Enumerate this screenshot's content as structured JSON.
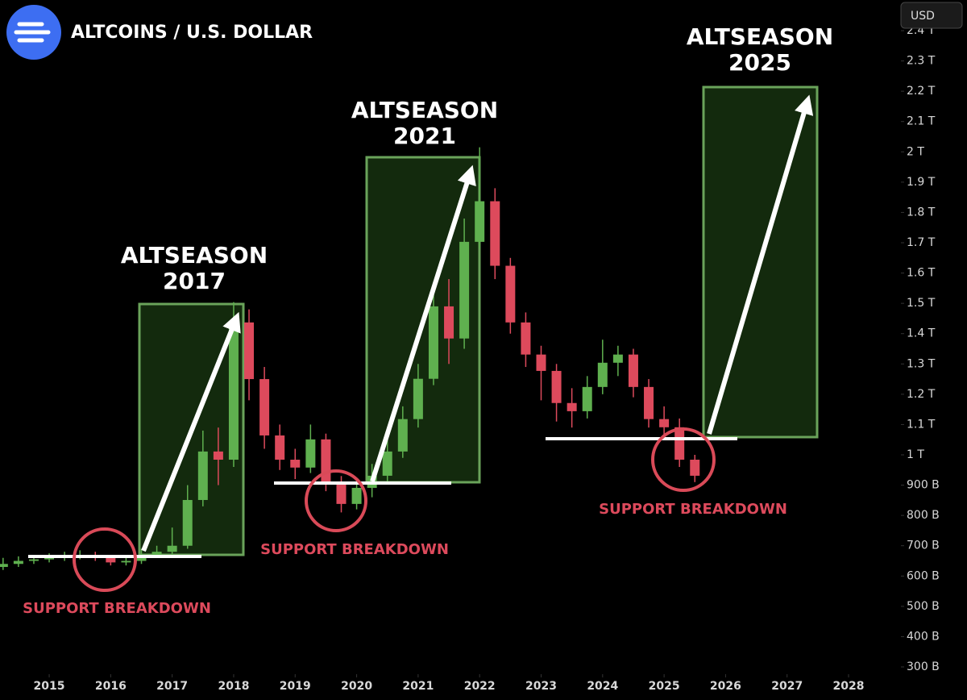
{
  "chart_data": {
    "type": "candlestick",
    "title": "ALTCOINS / U.S. DOLLAR",
    "currency": "USD",
    "up_color": "#5fb04f",
    "down_color": "#dd4a5c",
    "xlim": [
      2014.2,
      2028.55
    ],
    "xticks": [
      2015,
      2016,
      2017,
      2018,
      2019,
      2020,
      2021,
      2022,
      2023,
      2024,
      2025,
      2026,
      2027,
      2028
    ],
    "ylim": [
      300,
      2400
    ],
    "yticks": [
      {
        "value": 300,
        "label": "300 B"
      },
      {
        "value": 400,
        "label": "400 B"
      },
      {
        "value": 500,
        "label": "500 B"
      },
      {
        "value": 600,
        "label": "600 B"
      },
      {
        "value": 700,
        "label": "700 B"
      },
      {
        "value": 800,
        "label": "800 B"
      },
      {
        "value": 900,
        "label": "900 B"
      },
      {
        "value": 1000,
        "label": "1 T"
      },
      {
        "value": 1100,
        "label": "1.1 T"
      },
      {
        "value": 1200,
        "label": "1.2 T"
      },
      {
        "value": 1300,
        "label": "1.3 T"
      },
      {
        "value": 1400,
        "label": "1.4 T"
      },
      {
        "value": 1500,
        "label": "1.5 T"
      },
      {
        "value": 1600,
        "label": "1.6 T"
      },
      {
        "value": 1700,
        "label": "1.7 T"
      },
      {
        "value": 1800,
        "label": "1.8 T"
      },
      {
        "value": 1900,
        "label": "1.9 T"
      },
      {
        "value": 2000,
        "label": "2 T"
      },
      {
        "value": 2100,
        "label": "2.1 T"
      },
      {
        "value": 2200,
        "label": "2.2 T"
      },
      {
        "value": 2300,
        "label": "2.3 T"
      },
      {
        "value": 2400,
        "label": "2.4 T"
      }
    ],
    "x": [
      2014.25,
      2014.5,
      2014.75,
      2015,
      2015.25,
      2015.5,
      2015.75,
      2016,
      2016.25,
      2016.5,
      2016.75,
      2017,
      2017.25,
      2017.5,
      2017.75,
      2018,
      2018.25,
      2018.5,
      2018.75,
      2019,
      2019.25,
      2019.5,
      2019.75,
      2020,
      2020.25,
      2020.5,
      2020.75,
      2021,
      2021.25,
      2021.5,
      2021.75,
      2022,
      2022.25,
      2022.5,
      2022.75,
      2023,
      2023.25,
      2023.5,
      2023.75,
      2024,
      2024.25,
      2024.5,
      2024.75,
      2025,
      2025.25,
      2025.5
    ],
    "open": [
      630,
      640,
      650,
      655,
      660,
      665,
      668,
      660,
      645,
      650,
      670,
      680,
      700,
      851,
      1011,
      984,
      1437,
      1250,
      1064,
      984,
      958,
      1051,
      905,
      838,
      891,
      931,
      1011,
      1118,
      1251,
      1490,
      1384,
      1703,
      1837,
      1624,
      1437,
      1331,
      1277,
      1171,
      1144,
      1224,
      1304,
      1331,
      1224,
      1118,
      1091,
      984
    ],
    "high": [
      660,
      665,
      670,
      675,
      680,
      685,
      680,
      670,
      665,
      690,
      700,
      760,
      900,
      1080,
      1090,
      1504,
      1480,
      1290,
      1100,
      1020,
      1100,
      1070,
      930,
      920,
      970,
      1050,
      1160,
      1300,
      1560,
      1580,
      1780,
      2015,
      1880,
      1650,
      1470,
      1360,
      1300,
      1220,
      1260,
      1380,
      1360,
      1350,
      1250,
      1160,
      1120,
      1000
    ],
    "low": [
      620,
      630,
      640,
      645,
      650,
      655,
      650,
      635,
      635,
      640,
      660,
      670,
      690,
      830,
      900,
      960,
      1180,
      1020,
      950,
      920,
      940,
      880,
      810,
      820,
      860,
      910,
      990,
      1090,
      1230,
      1300,
      1350,
      1680,
      1580,
      1400,
      1290,
      1180,
      1110,
      1090,
      1120,
      1200,
      1260,
      1190,
      1090,
      1050,
      960,
      910
    ],
    "close": [
      640,
      650,
      655,
      660,
      665,
      668,
      660,
      645,
      650,
      670,
      680,
      700,
      851,
      1011,
      984,
      1437,
      1250,
      1064,
      984,
      958,
      1051,
      905,
      838,
      891,
      931,
      1011,
      1118,
      1251,
      1490,
      1384,
      1703,
      1837,
      1624,
      1437,
      1331,
      1277,
      1171,
      1144,
      1224,
      1304,
      1331,
      1224,
      1118,
      1091,
      984,
      931
    ],
    "annotations": [
      {
        "lines": [
          "ALTSEASON",
          "2017"
        ]
      },
      {
        "lines": [
          "ALTSEASON",
          "2021"
        ]
      },
      {
        "lines": [
          "ALTSEASON",
          "2025"
        ]
      },
      {
        "text": "SUPPORT BREAKDOWN"
      },
      {
        "text": "SUPPORT BREAKDOWN"
      },
      {
        "text": "SUPPORT BREAKDOWN"
      }
    ]
  }
}
